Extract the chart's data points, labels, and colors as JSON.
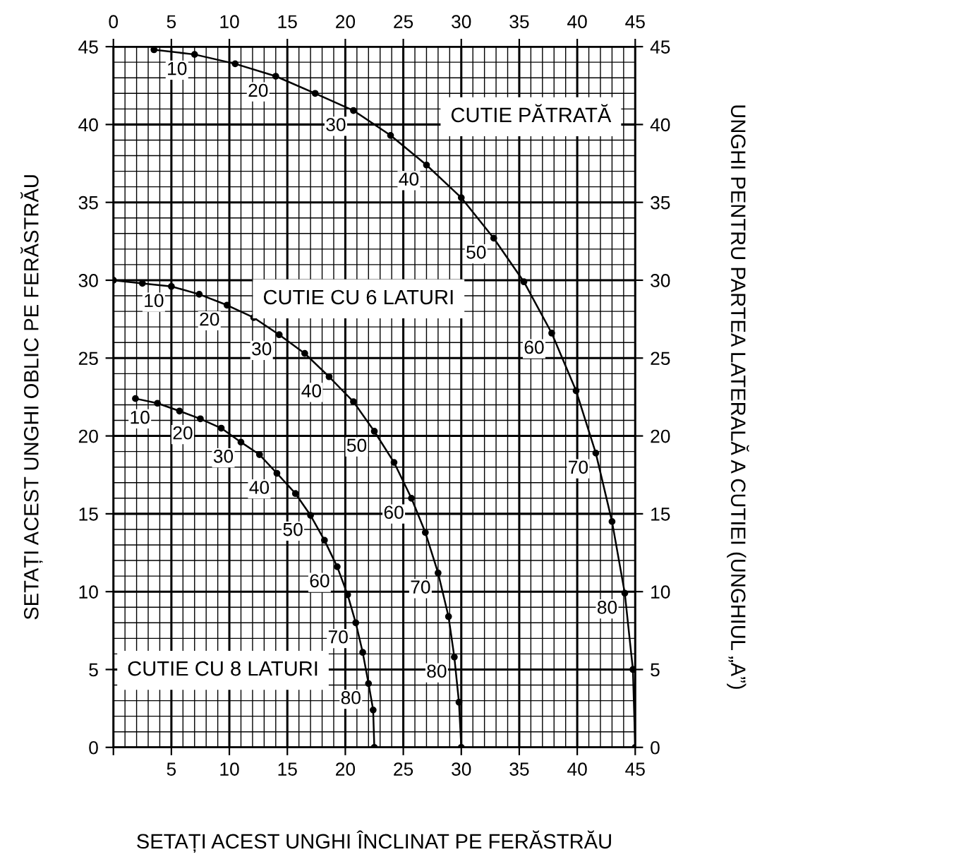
{
  "chart_data": {
    "type": "line",
    "xlabel": "SETAȚI ACEST UNGHI ÎNCLINAT PE FERĂSTRĂU",
    "ylabel": "SETAȚI ACEST UNGHI OBLIC PE FERĂSTRĂU",
    "y2label": "UNGHI PENTRU PARTEA LATERALĂ A CUTIEI (UNGHIUL „A”)",
    "xlim": [
      0,
      45
    ],
    "xticks": [
      {
        "value": 0,
        "label": null
      },
      5,
      10,
      15,
      20,
      25,
      30,
      35,
      40,
      45
    ],
    "x2lim": [
      0,
      45
    ],
    "x2ticks": [
      0,
      5,
      10,
      15,
      20,
      25,
      30,
      35,
      40,
      45
    ],
    "ylim": [
      0,
      45
    ],
    "yticks": [
      0,
      5,
      10,
      15,
      20,
      25,
      30,
      35,
      40,
      45
    ],
    "y2lim": [
      0,
      45
    ],
    "y2ticks": [
      0,
      5,
      10,
      15,
      20,
      25,
      30,
      35,
      40,
      45
    ],
    "grid": true,
    "legend": false,
    "marker": "circle",
    "line_style": "solid",
    "series": [
      {
        "name": "CUTIE PĂTRATĂ",
        "color": "#000000",
        "x": [
          3.5,
          7.0,
          10.5,
          14.0,
          17.4,
          20.7,
          23.9,
          27.0,
          30.0,
          32.8,
          35.4,
          37.8,
          39.9,
          41.6,
          43.0,
          44.1,
          44.8,
          45.0
        ],
        "values": [
          44.8,
          44.5,
          43.9,
          43.1,
          42.0,
          40.9,
          39.3,
          37.4,
          35.3,
          32.7,
          29.9,
          26.6,
          22.9,
          18.9,
          14.5,
          9.9,
          5.0,
          0
        ]
      },
      {
        "name": "CUTIE CU 6 LATURI",
        "color": "#000000",
        "x": [
          0,
          2.5,
          5.0,
          7.4,
          9.8,
          12.1,
          14.3,
          16.5,
          18.6,
          20.7,
          22.5,
          24.2,
          25.7,
          26.9,
          28.0,
          28.9,
          29.4,
          29.8,
          30.0
        ],
        "values": [
          30,
          29.8,
          29.6,
          29.1,
          28.4,
          27.6,
          26.5,
          25.3,
          23.8,
          22.2,
          20.3,
          18.3,
          16.0,
          13.8,
          11.2,
          8.4,
          5.8,
          2.9,
          0
        ]
      },
      {
        "name": "CUTIE CU 8 LATURI",
        "color": "#000000",
        "x": [
          1.9,
          3.8,
          5.7,
          7.5,
          9.3,
          11.0,
          12.6,
          14.1,
          15.7,
          17.0,
          18.2,
          19.3,
          20.2,
          20.9,
          21.5,
          22.0,
          22.4,
          22.5
        ],
        "values": [
          22.4,
          22.1,
          21.6,
          21.1,
          20.5,
          19.6,
          18.8,
          17.6,
          16.3,
          14.9,
          13.3,
          11.6,
          9.8,
          8.0,
          6.1,
          4.1,
          2.4,
          0
        ]
      }
    ],
    "annotations": [
      {
        "text": "10",
        "x": 7.0,
        "y": 44.5
      },
      {
        "text": "20",
        "x": 14.0,
        "y": 43.1
      },
      {
        "text": "30",
        "x": 20.7,
        "y": 40.9
      },
      {
        "text": "40",
        "x": 27.0,
        "y": 37.4
      },
      {
        "text": "50",
        "x": 32.8,
        "y": 32.7
      },
      {
        "text": "60",
        "x": 37.8,
        "y": 26.6
      },
      {
        "text": "70",
        "x": 41.6,
        "y": 18.9
      },
      {
        "text": "80",
        "x": 44.1,
        "y": 9.9
      },
      {
        "text": "10",
        "x": 5.0,
        "y": 29.6
      },
      {
        "text": "20",
        "x": 9.8,
        "y": 28.4
      },
      {
        "text": "30",
        "x": 14.3,
        "y": 26.5
      },
      {
        "text": "40",
        "x": 18.6,
        "y": 23.8
      },
      {
        "text": "50",
        "x": 22.5,
        "y": 20.3
      },
      {
        "text": "60",
        "x": 25.7,
        "y": 16.0
      },
      {
        "text": "70",
        "x": 28.0,
        "y": 11.2
      },
      {
        "text": "80",
        "x": 29.4,
        "y": 5.8
      },
      {
        "text": "10",
        "x": 3.8,
        "y": 22.1
      },
      {
        "text": "20",
        "x": 7.5,
        "y": 21.1
      },
      {
        "text": "30",
        "x": 11.0,
        "y": 19.6
      },
      {
        "text": "40",
        "x": 14.1,
        "y": 17.6
      },
      {
        "text": "50",
        "x": 17.0,
        "y": 14.9
      },
      {
        "text": "60",
        "x": 19.3,
        "y": 11.6
      },
      {
        "text": "70",
        "x": 20.9,
        "y": 8.0
      },
      {
        "text": "80",
        "x": 22.0,
        "y": 4.1
      }
    ]
  }
}
